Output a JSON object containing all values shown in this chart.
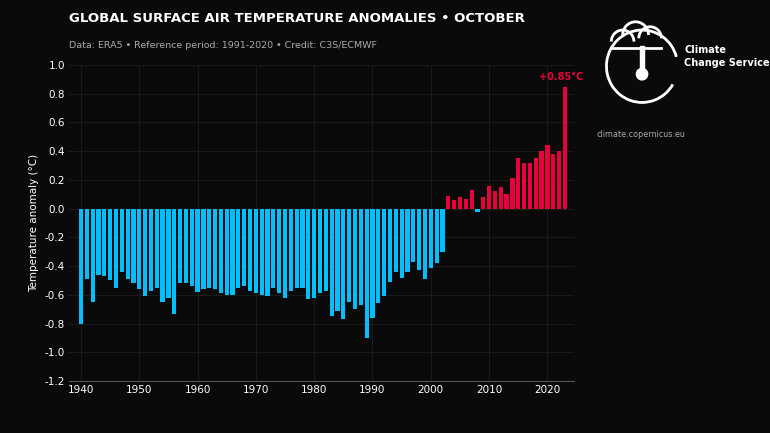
{
  "title": "GLOBAL SURFACE AIR TEMPERATURE ANOMALIES • OCTOBER",
  "subtitle": "Data: ERA5 • Reference period: 1991-2020 • Credit: C3S/ECMWF",
  "ylabel": "Temperature anomaly (°C)",
  "background_color": "#0a0a0a",
  "text_color": "#ffffff",
  "subtitle_color": "#aaaaaa",
  "grid_color": "#1e1e1e",
  "cyan_color": "#00bfff",
  "red_color": "#e8003c",
  "annotation": "+0.85°C",
  "annotation_color": "#e8003c",
  "logo_text1": "Climate\nChange Service",
  "logo_text2": "climate.copernicus.eu",
  "years": [
    1940,
    1941,
    1942,
    1943,
    1944,
    1945,
    1946,
    1947,
    1948,
    1949,
    1950,
    1951,
    1952,
    1953,
    1954,
    1955,
    1956,
    1957,
    1958,
    1959,
    1960,
    1961,
    1962,
    1963,
    1964,
    1965,
    1966,
    1967,
    1968,
    1969,
    1970,
    1971,
    1972,
    1973,
    1974,
    1975,
    1976,
    1977,
    1978,
    1979,
    1980,
    1981,
    1982,
    1983,
    1984,
    1985,
    1986,
    1987,
    1988,
    1989,
    1990,
    1991,
    1992,
    1993,
    1994,
    1995,
    1996,
    1997,
    1998,
    1999,
    2000,
    2001,
    2002,
    2003,
    2004,
    2005,
    2006,
    2007,
    2008,
    2009,
    2010,
    2011,
    2012,
    2013,
    2014,
    2015,
    2016,
    2017,
    2018,
    2019,
    2020,
    2021,
    2022,
    2023
  ],
  "values": [
    -0.8,
    -0.49,
    -0.65,
    -0.46,
    -0.47,
    -0.5,
    -0.55,
    -0.44,
    -0.49,
    -0.52,
    -0.56,
    -0.61,
    -0.57,
    -0.55,
    -0.65,
    -0.62,
    -0.73,
    -0.52,
    -0.52,
    -0.54,
    -0.58,
    -0.56,
    -0.55,
    -0.56,
    -0.59,
    -0.6,
    -0.6,
    -0.55,
    -0.54,
    -0.57,
    -0.59,
    -0.6,
    -0.61,
    -0.55,
    -0.59,
    -0.62,
    -0.57,
    -0.55,
    -0.55,
    -0.63,
    -0.62,
    -0.59,
    -0.57,
    -0.75,
    -0.71,
    -0.77,
    -0.65,
    -0.7,
    -0.67,
    -0.9,
    -0.76,
    -0.66,
    -0.61,
    -0.51,
    -0.44,
    -0.48,
    -0.44,
    -0.37,
    -0.43,
    -0.49,
    -0.41,
    -0.38,
    -0.3,
    0.09,
    0.06,
    0.08,
    0.07,
    0.13,
    -0.02,
    0.08,
    0.16,
    0.12,
    0.15,
    0.1,
    0.21,
    0.35,
    0.32,
    0.32,
    0.35,
    0.4,
    0.44,
    0.38,
    0.4,
    0.85
  ],
  "xlim_left": 1938.0,
  "xlim_right": 2024.5,
  "ylim": [
    -1.2,
    1.0
  ],
  "yticks": [
    -1.2,
    -1.0,
    -0.8,
    -0.6,
    -0.4,
    -0.2,
    0.0,
    0.2,
    0.4,
    0.6,
    0.8,
    1.0
  ],
  "xticks": [
    1940,
    1950,
    1960,
    1970,
    1980,
    1990,
    2000,
    2010,
    2020
  ]
}
